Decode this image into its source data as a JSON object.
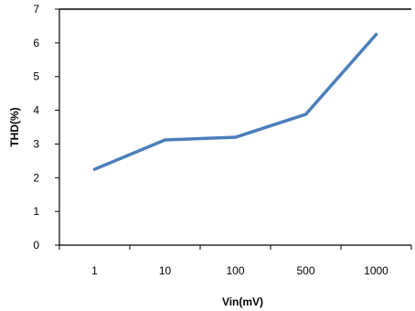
{
  "chart_data": {
    "type": "line",
    "xlabel": "Vin(mV)",
    "ylabel": "THD(%)",
    "categories": [
      "1",
      "10",
      "100",
      "500",
      "1000"
    ],
    "series": [
      {
        "values": [
          2.25,
          3.12,
          3.2,
          3.88,
          6.25
        ],
        "color": "#4a7ebb"
      }
    ],
    "ylim": [
      0,
      7
    ],
    "yticks": [
      "0",
      "1",
      "2",
      "3",
      "4",
      "5",
      "6",
      "7"
    ],
    "grid": false,
    "legend": "none"
  }
}
